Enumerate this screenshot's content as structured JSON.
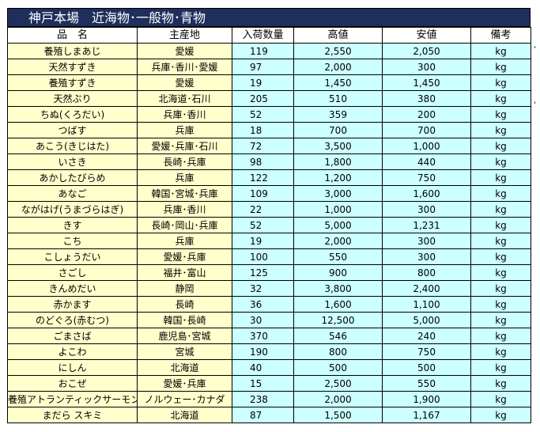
{
  "title": "神戸本場　近海物･一般物･青物",
  "columns": [
    "品　名",
    "主産地",
    "入荷数量",
    "高値",
    "安値",
    "備考"
  ],
  "rows": [
    {
      "name": "養殖しまあじ",
      "origin": "愛媛",
      "qty": "119",
      "high": "2,550",
      "low": "2,050",
      "unit": "kg"
    },
    {
      "name": "天然すずき",
      "origin": "兵庫･香川･愛媛",
      "qty": "97",
      "high": "2,000",
      "low": "300",
      "unit": "kg"
    },
    {
      "name": "養殖すずき",
      "origin": "愛媛",
      "qty": "19",
      "high": "1,450",
      "low": "1,450",
      "unit": "kg"
    },
    {
      "name": "天然ぶり",
      "origin": "北海道･石川",
      "qty": "205",
      "high": "510",
      "low": "380",
      "unit": "kg"
    },
    {
      "name": "ちぬ(くろだい)",
      "origin": "兵庫･香川",
      "qty": "52",
      "high": "359",
      "low": "200",
      "unit": "kg"
    },
    {
      "name": "つばす",
      "origin": "兵庫",
      "qty": "18",
      "high": "700",
      "low": "700",
      "unit": "kg"
    },
    {
      "name": "あこう(きじはた)",
      "origin": "愛媛･兵庫･石川",
      "qty": "72",
      "high": "3,500",
      "low": "1,000",
      "unit": "kg"
    },
    {
      "name": "いさき",
      "origin": "長崎･兵庫",
      "qty": "98",
      "high": "1,800",
      "low": "440",
      "unit": "kg"
    },
    {
      "name": "あかしたびらめ",
      "origin": "兵庫",
      "qty": "122",
      "high": "1,200",
      "low": "750",
      "unit": "kg"
    },
    {
      "name": "あなご",
      "origin": "韓国･宮城･兵庫",
      "qty": "109",
      "high": "3,000",
      "low": "1,600",
      "unit": "kg"
    },
    {
      "name": "ながはげ(うまづらはぎ)",
      "origin": "兵庫･香川",
      "qty": "22",
      "high": "1,000",
      "low": "300",
      "unit": "kg"
    },
    {
      "name": "きす",
      "origin": "長崎･岡山･兵庫",
      "qty": "52",
      "high": "5,000",
      "low": "1,231",
      "unit": "kg"
    },
    {
      "name": "こち",
      "origin": "兵庫",
      "qty": "19",
      "high": "2,000",
      "low": "300",
      "unit": "kg"
    },
    {
      "name": "こしょうだい",
      "origin": "愛媛･兵庫",
      "qty": "100",
      "high": "550",
      "low": "300",
      "unit": "kg"
    },
    {
      "name": "さごし",
      "origin": "福井･富山",
      "qty": "125",
      "high": "900",
      "low": "800",
      "unit": "kg"
    },
    {
      "name": "きんめだい",
      "origin": "静岡",
      "qty": "32",
      "high": "3,800",
      "low": "2,400",
      "unit": "kg"
    },
    {
      "name": "赤かます",
      "origin": "長崎",
      "qty": "36",
      "high": "1,600",
      "low": "1,100",
      "unit": "kg"
    },
    {
      "name": "のどぐろ(赤むつ)",
      "origin": "韓国･長崎",
      "qty": "30",
      "high": "12,500",
      "low": "5,000",
      "unit": "kg"
    },
    {
      "name": "ごまさば",
      "origin": "鹿児島･宮城",
      "qty": "370",
      "high": "546",
      "low": "240",
      "unit": "kg"
    },
    {
      "name": "よこわ",
      "origin": "宮城",
      "qty": "190",
      "high": "800",
      "low": "750",
      "unit": "kg"
    },
    {
      "name": "にしん",
      "origin": "北海道",
      "qty": "40",
      "high": "500",
      "low": "500",
      "unit": "kg"
    },
    {
      "name": "おこぜ",
      "origin": "愛媛･兵庫",
      "qty": "15",
      "high": "2,500",
      "low": "550",
      "unit": "kg"
    },
    {
      "name": "養殖アトランティックサーモン",
      "origin": "ノルウェー･カナダ",
      "qty": "238",
      "high": "2,000",
      "low": "1,900",
      "unit": "kg"
    },
    {
      "name": "まだら スキミ",
      "origin": "北海道",
      "qty": "87",
      "high": "1,500",
      "low": "1,167",
      "unit": "kg"
    }
  ]
}
